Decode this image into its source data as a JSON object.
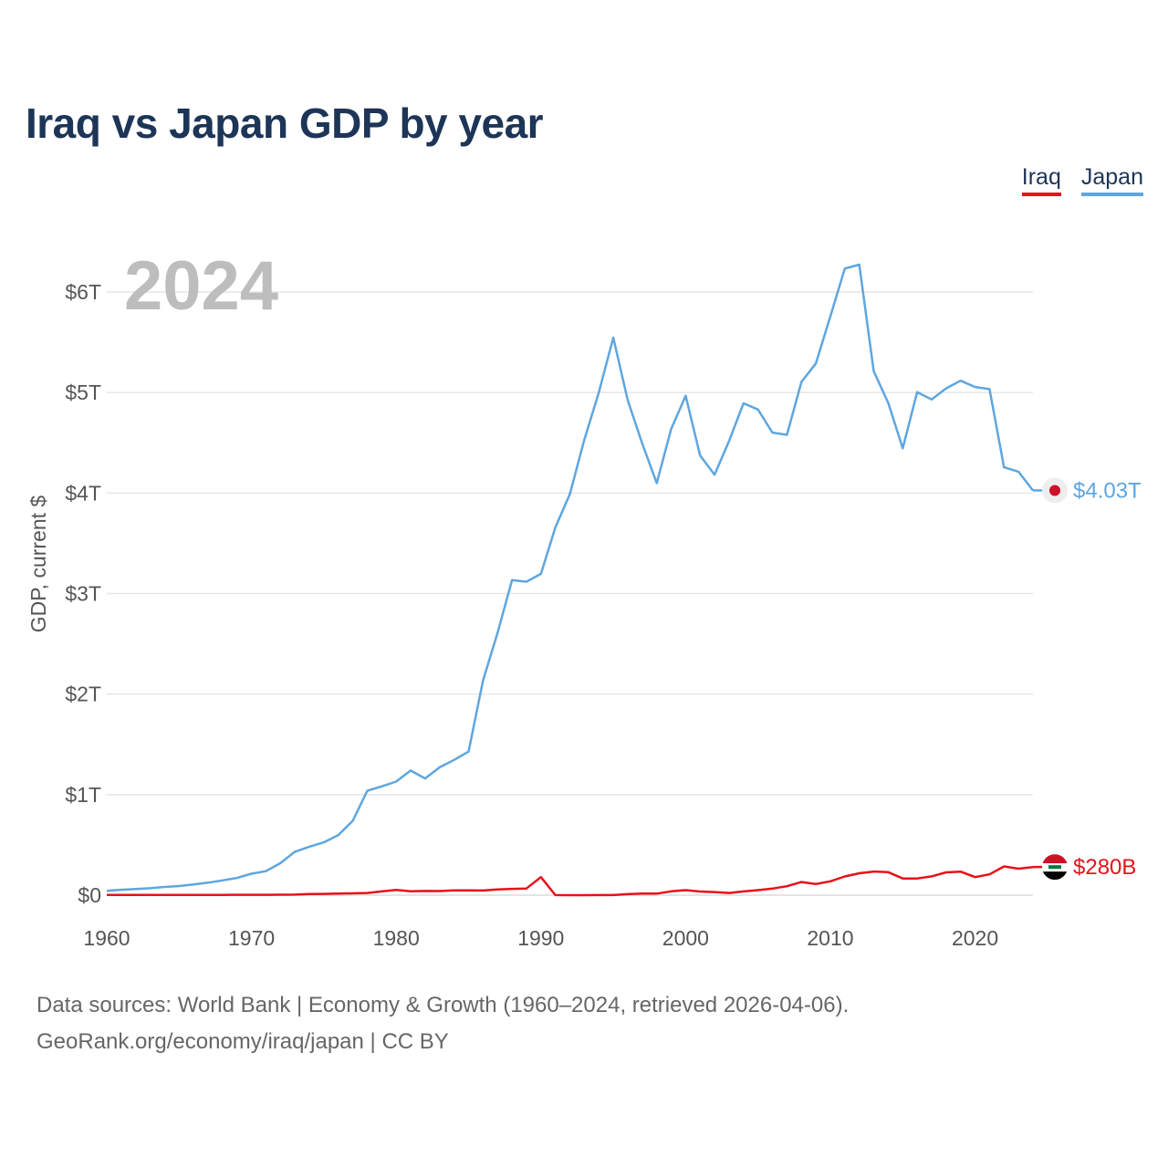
{
  "header": {
    "title": "Iraq vs Japan GDP by year"
  },
  "legend": {
    "iraq": "Iraq",
    "japan": "Japan"
  },
  "year_display": "2024",
  "footer": {
    "source_line": "Data sources: World Bank | Economy & Growth (1960–2024, retrieved 2026-04-06).",
    "credit_line": "GeoRank.org/economy/iraq/japan | CC BY"
  },
  "colors": {
    "iraq": "#e8101a",
    "japan": "#5ea6e0",
    "title": "#1d3557",
    "grid": "#e6e6e6"
  },
  "chart_data": {
    "type": "line",
    "title": "Iraq vs Japan GDP by year",
    "xlabel": "",
    "ylabel": "GDP, current $",
    "xlim": [
      1960,
      2024
    ],
    "ylim": [
      0,
      6
    ],
    "y_unit": "trillion USD",
    "x_ticks": [
      1960,
      1970,
      1980,
      1990,
      2000,
      2010,
      2020
    ],
    "y_ticks": [
      0,
      1,
      2,
      3,
      4,
      5,
      6
    ],
    "y_tick_labels": [
      "$0",
      "$1T",
      "$2T",
      "$3T",
      "$4T",
      "$5T",
      "$6T"
    ],
    "x": [
      1960,
      1961,
      1962,
      1963,
      1964,
      1965,
      1966,
      1967,
      1968,
      1969,
      1970,
      1971,
      1972,
      1973,
      1974,
      1975,
      1976,
      1977,
      1978,
      1979,
      1980,
      1981,
      1982,
      1983,
      1984,
      1985,
      1986,
      1987,
      1988,
      1989,
      1990,
      1991,
      1992,
      1993,
      1994,
      1995,
      1996,
      1997,
      1998,
      1999,
      2000,
      2001,
      2002,
      2003,
      2004,
      2005,
      2006,
      2007,
      2008,
      2009,
      2010,
      2011,
      2012,
      2013,
      2014,
      2015,
      2016,
      2017,
      2018,
      2019,
      2020,
      2021,
      2022,
      2023,
      2024
    ],
    "series": [
      {
        "name": "Japan",
        "end_label": "$4.03T",
        "values": [
          0.044,
          0.054,
          0.061,
          0.069,
          0.082,
          0.091,
          0.106,
          0.124,
          0.147,
          0.172,
          0.213,
          0.239,
          0.319,
          0.432,
          0.482,
          0.526,
          0.598,
          0.74,
          1.038,
          1.082,
          1.13,
          1.24,
          1.161,
          1.272,
          1.345,
          1.428,
          2.134,
          2.607,
          3.133,
          3.118,
          3.196,
          3.658,
          3.989,
          4.532,
          4.999,
          5.546,
          4.924,
          4.493,
          4.098,
          4.636,
          4.968,
          4.374,
          4.183,
          4.519,
          4.893,
          4.831,
          4.601,
          4.579,
          5.106,
          5.289,
          5.759,
          6.233,
          6.272,
          5.212,
          4.897,
          4.445,
          5.004,
          4.931,
          5.041,
          5.118,
          5.055,
          5.034,
          4.256,
          4.213,
          4.026
        ]
      },
      {
        "name": "Iraq",
        "end_label": "$280B",
        "values": [
          0.0017,
          0.0019,
          0.002,
          0.0021,
          0.0023,
          0.0025,
          0.0027,
          0.0028,
          0.0031,
          0.0034,
          0.0036,
          0.0039,
          0.0043,
          0.0054,
          0.011,
          0.013,
          0.016,
          0.018,
          0.022,
          0.037,
          0.053,
          0.038,
          0.042,
          0.041,
          0.047,
          0.048,
          0.046,
          0.057,
          0.063,
          0.066,
          0.18,
          0.0005,
          0.0004,
          0.0004,
          0.0007,
          0.0008,
          0.01,
          0.015,
          0.015,
          0.038,
          0.05,
          0.036,
          0.031,
          0.022,
          0.037,
          0.05,
          0.065,
          0.089,
          0.131,
          0.111,
          0.138,
          0.186,
          0.218,
          0.235,
          0.229,
          0.166,
          0.166,
          0.187,
          0.227,
          0.234,
          0.18,
          0.207,
          0.286,
          0.263,
          0.28
        ]
      }
    ]
  }
}
